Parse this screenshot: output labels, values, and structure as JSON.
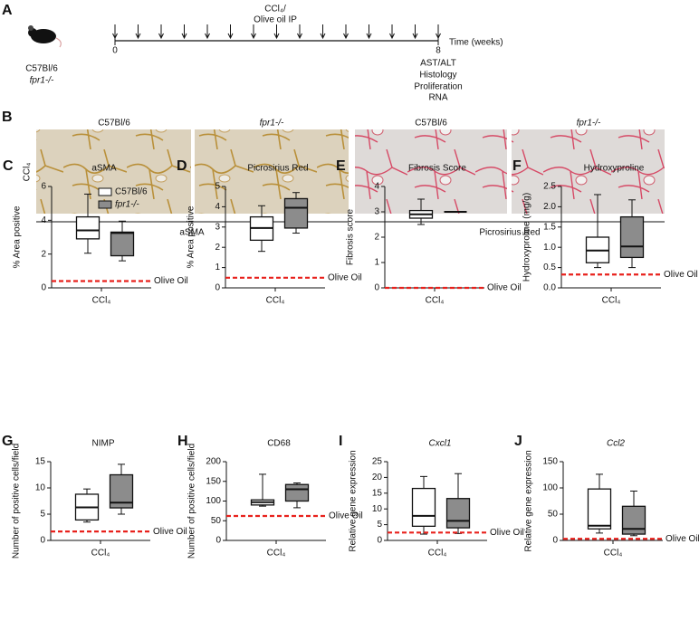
{
  "panel_a": {
    "label": "A",
    "strain": "C57Bl/6",
    "knockout": "fpr1-/-",
    "treatment": [
      "CCl₄/",
      "Olive oil IP"
    ],
    "time_start": 0,
    "time_end": 8,
    "time_axis": "Time (weeks)",
    "readouts": [
      "AST/ALT",
      "Histology",
      "Proliferation",
      "RNA"
    ]
  },
  "panel_b": {
    "label": "B",
    "row_label": "CCl₄",
    "columns": [
      "C57Bl/6",
      "fpr1-/-",
      "C57Bl/6",
      "fpr1-/-"
    ],
    "stains": [
      "aSMA",
      "Picrosirius Red"
    ]
  },
  "chart_data": [
    {
      "type": "box",
      "label": "C",
      "title": "aSMA",
      "y_label": "% Area positive",
      "x_label": "CCl₄",
      "ylim": [
        0,
        6
      ],
      "yticks": [
        0,
        2,
        4,
        6
      ],
      "legend": true,
      "series": [
        {
          "name": "C57Bl/6",
          "color": "#ffffff",
          "min": 2.05,
          "q1": 2.9,
          "median": 3.4,
          "q3": 4.2,
          "max": 5.55
        },
        {
          "name": "fpr1-/-",
          "color": "#8c8c8c",
          "min": 1.6,
          "q1": 1.9,
          "median": 3.25,
          "q3": 3.3,
          "max": 3.95
        }
      ],
      "reference": {
        "label": "Olive Oil",
        "value": 0.4,
        "color": "#e8211c"
      }
    },
    {
      "type": "box",
      "label": "D",
      "title": "Picrosirius Red",
      "y_label": "% Area positive",
      "x_label": "CCl₄",
      "ylim": [
        0,
        5
      ],
      "yticks": [
        0,
        1,
        2,
        3,
        4,
        5
      ],
      "series": [
        {
          "color": "#ffffff",
          "min": 1.8,
          "q1": 2.35,
          "median": 2.95,
          "q3": 3.5,
          "max": 4.05
        },
        {
          "color": "#8c8c8c",
          "min": 2.7,
          "q1": 2.95,
          "median": 3.95,
          "q3": 4.4,
          "max": 4.7
        }
      ],
      "reference": {
        "label": "Olive Oil",
        "value": 0.5,
        "color": "#e8211c"
      }
    },
    {
      "type": "box",
      "label": "E",
      "title": "Fibrosis Score",
      "y_label": "Fibrosis score",
      "x_label": "CCl₄",
      "ylim": [
        0,
        4
      ],
      "yticks": [
        0,
        1,
        2,
        3,
        4
      ],
      "series": [
        {
          "color": "#ffffff",
          "min": 2.5,
          "q1": 2.75,
          "median": 2.9,
          "q3": 3.05,
          "max": 3.5
        },
        {
          "color": "#8c8c8c",
          "min": 3,
          "q1": 3,
          "median": 3,
          "q3": 3,
          "max": 3
        }
      ],
      "reference": {
        "label": "Olive Oil",
        "value": 0,
        "color": "#e8211c"
      }
    },
    {
      "type": "box",
      "label": "F",
      "title": "Hydroxyproline",
      "y_label": "Hydroxyproline (mg/g)",
      "x_label": "CCl₄",
      "ylim": [
        0,
        2.5
      ],
      "yticks": [
        {
          "value": 0,
          "label": "0.0"
        },
        0.5,
        {
          "value": 1,
          "label": "1.0"
        },
        1.5,
        {
          "value": 2,
          "label": "2.0"
        },
        2.5
      ],
      "series": [
        {
          "color": "#ffffff",
          "min": 0.5,
          "q1": 0.62,
          "median": 0.92,
          "q3": 1.25,
          "max": 2.3
        },
        {
          "color": "#8c8c8c",
          "min": 0.5,
          "q1": 0.75,
          "median": 1.02,
          "q3": 1.75,
          "max": 2.17
        }
      ],
      "reference": {
        "label": "Olive Oil",
        "value": 0.33,
        "color": "#e8211c"
      }
    },
    {
      "type": "box",
      "label": "G",
      "title": "NIMP",
      "y_label": "Number of positive cells/field",
      "x_label": "CCl₄",
      "ylim": [
        0,
        15
      ],
      "yticks": [
        0,
        5,
        10,
        15
      ],
      "series": [
        {
          "color": "#ffffff",
          "min": 3.5,
          "q1": 3.9,
          "median": 6.3,
          "q3": 8.8,
          "max": 9.8
        },
        {
          "color": "#8c8c8c",
          "min": 5,
          "q1": 6.2,
          "median": 7.2,
          "q3": 12.5,
          "max": 14.5
        }
      ],
      "reference": {
        "label": "Olive Oil",
        "value": 1.7,
        "color": "#e8211c"
      }
    },
    {
      "type": "box",
      "label": "H",
      "title": "CD68",
      "y_label": "Number of positive cells/field",
      "x_label": "CCl₄",
      "ylim": [
        0,
        200
      ],
      "yticks": [
        0,
        50,
        100,
        150,
        200
      ],
      "series": [
        {
          "color": "#ffffff",
          "min": 87,
          "q1": 90,
          "median": 97,
          "q3": 103,
          "max": 168
        },
        {
          "color": "#8c8c8c",
          "min": 83,
          "q1": 100,
          "median": 130,
          "q3": 142,
          "max": 146
        }
      ],
      "reference": {
        "label": "Olive Oil",
        "value": 62,
        "color": "#e8211c"
      }
    },
    {
      "type": "box",
      "label": "I",
      "title": "Cxcl1",
      "title_style": "italic",
      "y_label": "Relative gene expression",
      "x_label": "CCl₄",
      "ylim": [
        0,
        25
      ],
      "yticks": [
        0,
        5,
        10,
        15,
        20,
        25
      ],
      "series": [
        {
          "color": "#ffffff",
          "min": 2,
          "q1": 4.5,
          "median": 7.8,
          "q3": 16.5,
          "max": 20.3
        },
        {
          "color": "#8c8c8c",
          "min": 2.2,
          "q1": 4,
          "median": 6.2,
          "q3": 13.3,
          "max": 21.2
        }
      ],
      "reference": {
        "label": "Olive Oil",
        "value": 2.5,
        "color": "#e8211c"
      }
    },
    {
      "type": "box",
      "label": "J",
      "title": "Ccl2",
      "title_style": "italic",
      "y_label": "Relative gene expression",
      "x_label": "CCl₄",
      "ylim": [
        0,
        150
      ],
      "yticks": [
        0,
        50,
        100,
        150
      ],
      "series": [
        {
          "color": "#ffffff",
          "min": 14,
          "q1": 22,
          "median": 28,
          "q3": 98,
          "max": 126
        },
        {
          "color": "#8c8c8c",
          "min": 9,
          "q1": 12,
          "median": 22,
          "q3": 65,
          "max": 94
        }
      ],
      "reference": {
        "label": "Olive Oil",
        "value": 3,
        "color": "#e8211c"
      }
    }
  ]
}
